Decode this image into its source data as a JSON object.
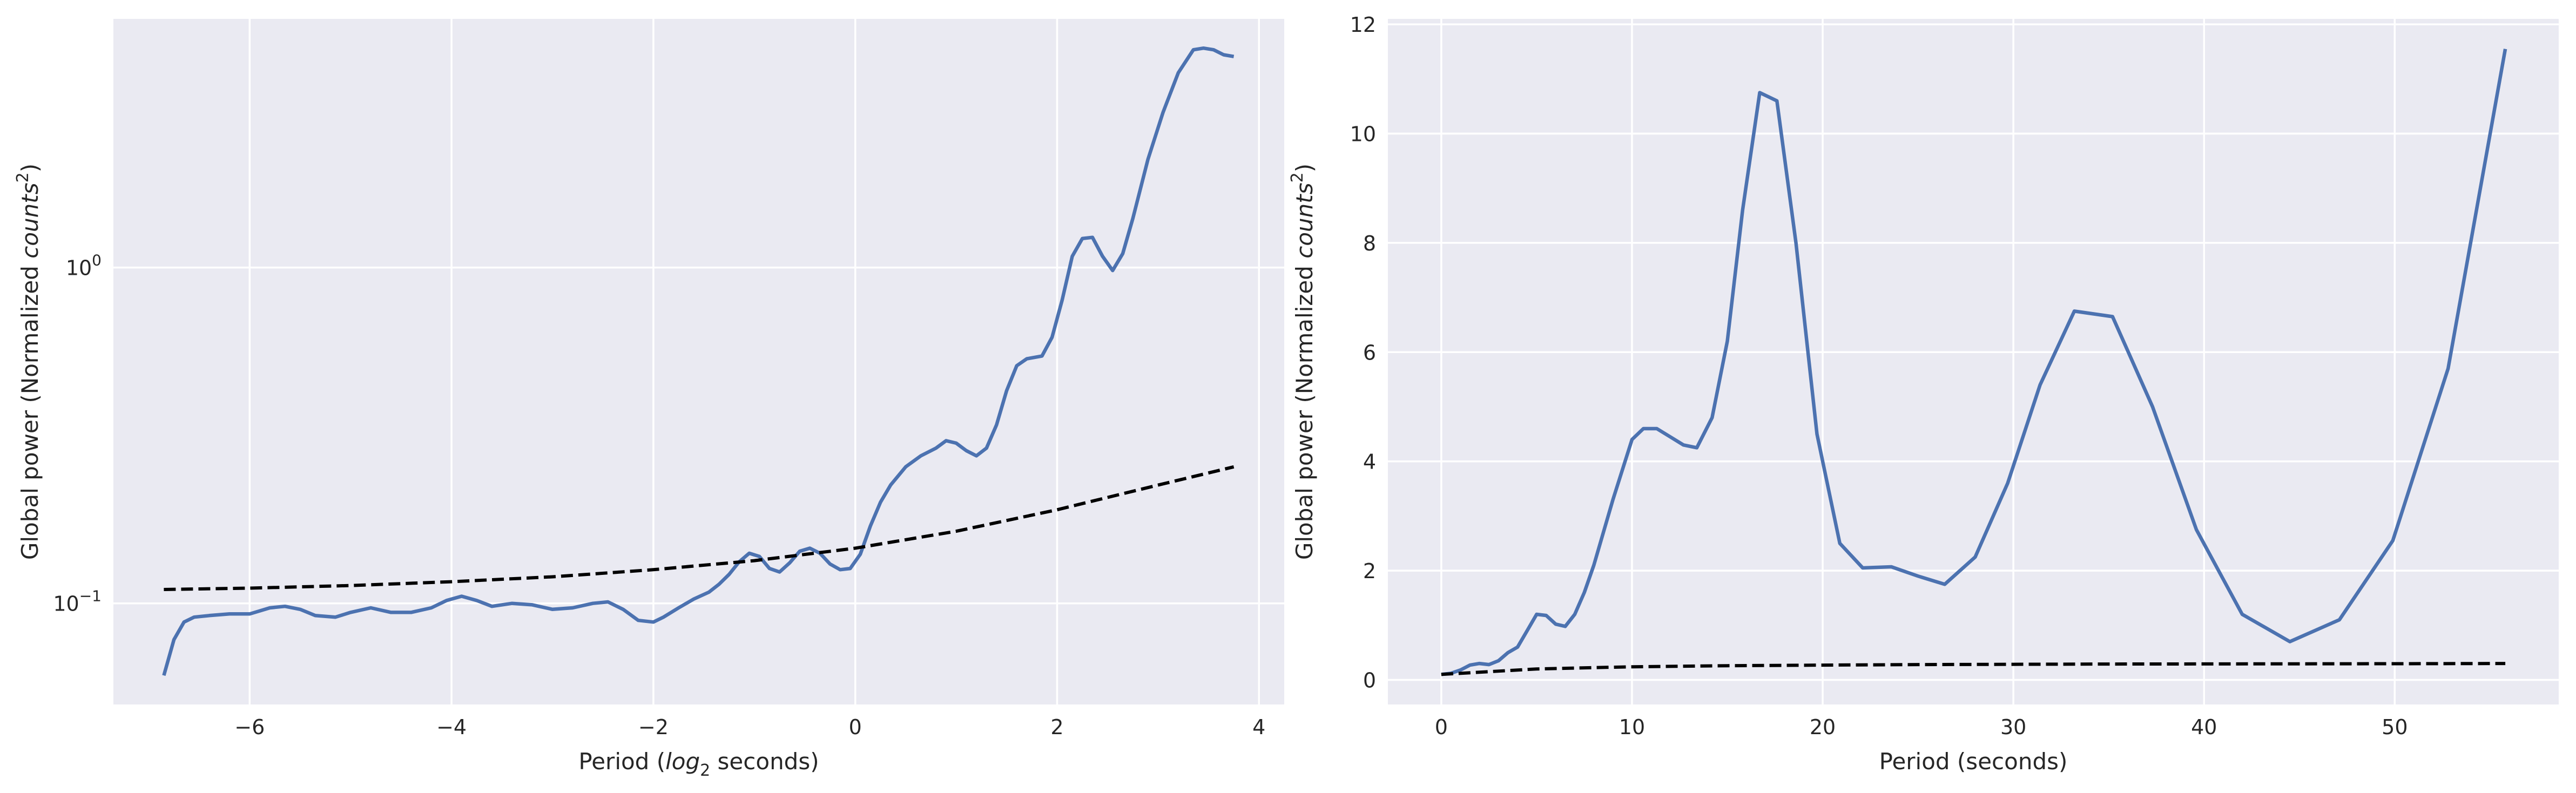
{
  "chart_data": [
    {
      "type": "line",
      "xlabel_prefix": "Period (",
      "xlabel_math": "log",
      "xlabel_sub": "2",
      "xlabel_suffix": " seconds)",
      "ylabel_prefix": "Global power (Normalized ",
      "ylabel_math": "counts",
      "ylabel_sup": "2",
      "ylabel_suffix": ")",
      "yscale": "log",
      "xlim": [
        -7.35,
        4.25
      ],
      "ylim": [
        0.05,
        5.5
      ],
      "grid": true,
      "xticks": [
        -6,
        -4,
        -2,
        0,
        2,
        4
      ],
      "xtick_labels": [
        "−6",
        "−4",
        "−2",
        "0",
        "2",
        "4"
      ],
      "yticks": [
        {
          "value": 0.1,
          "base": "10",
          "exp": "−1"
        },
        {
          "value": 1.0,
          "base": "10",
          "exp": "0"
        }
      ],
      "series": [
        {
          "style": "solid",
          "color": "#4c72b0",
          "x": [
            -6.85,
            -6.75,
            -6.65,
            -6.55,
            -6.4,
            -6.2,
            -6.0,
            -5.8,
            -5.65,
            -5.5,
            -5.35,
            -5.15,
            -5.0,
            -4.8,
            -4.6,
            -4.4,
            -4.2,
            -4.05,
            -3.9,
            -3.75,
            -3.6,
            -3.4,
            -3.2,
            -3.0,
            -2.8,
            -2.6,
            -2.45,
            -2.3,
            -2.15,
            -2.0,
            -1.9,
            -1.75,
            -1.6,
            -1.45,
            -1.35,
            -1.25,
            -1.15,
            -1.05,
            -0.95,
            -0.85,
            -0.75,
            -0.65,
            -0.55,
            -0.45,
            -0.35,
            -0.25,
            -0.15,
            -0.05,
            0.05,
            0.15,
            0.25,
            0.35,
            0.5,
            0.65,
            0.8,
            0.9,
            1.0,
            1.1,
            1.2,
            1.3,
            1.4,
            1.5,
            1.6,
            1.7,
            1.85,
            1.95,
            2.05,
            2.15,
            2.25,
            2.35,
            2.45,
            2.55,
            2.65,
            2.75,
            2.9,
            3.05,
            3.2,
            3.35,
            3.45,
            3.55,
            3.65,
            3.75
          ],
          "y": [
            0.061,
            0.078,
            0.088,
            0.091,
            0.092,
            0.093,
            0.093,
            0.097,
            0.098,
            0.096,
            0.092,
            0.091,
            0.094,
            0.097,
            0.094,
            0.094,
            0.097,
            0.102,
            0.105,
            0.102,
            0.098,
            0.1,
            0.099,
            0.096,
            0.097,
            0.1,
            0.101,
            0.096,
            0.089,
            0.088,
            0.091,
            0.097,
            0.103,
            0.108,
            0.114,
            0.122,
            0.133,
            0.141,
            0.138,
            0.127,
            0.124,
            0.132,
            0.143,
            0.146,
            0.141,
            0.131,
            0.126,
            0.127,
            0.14,
            0.17,
            0.2,
            0.225,
            0.255,
            0.275,
            0.29,
            0.305,
            0.3,
            0.285,
            0.275,
            0.29,
            0.34,
            0.43,
            0.51,
            0.535,
            0.545,
            0.62,
            0.8,
            1.08,
            1.22,
            1.23,
            1.08,
            0.98,
            1.1,
            1.4,
            2.1,
            2.9,
            3.8,
            4.45,
            4.5,
            4.45,
            4.3,
            4.25
          ]
        },
        {
          "style": "dashed",
          "color": "#000000",
          "x": [
            -6.85,
            -6.0,
            -5.0,
            -4.0,
            -3.0,
            -2.0,
            -1.0,
            0.0,
            1.0,
            2.0,
            3.0,
            3.75
          ],
          "y": [
            0.11,
            0.111,
            0.113,
            0.116,
            0.12,
            0.126,
            0.134,
            0.146,
            0.164,
            0.19,
            0.225,
            0.255
          ]
        }
      ]
    },
    {
      "type": "line",
      "xlabel": "Period (seconds)",
      "ylabel_prefix": "Global power (Normalized ",
      "ylabel_math": "counts",
      "ylabel_sup": "2",
      "ylabel_suffix": ")",
      "yscale": "linear",
      "xlim": [
        -2.8,
        58.6
      ],
      "ylim": [
        -0.45,
        12.1
      ],
      "grid": true,
      "xticks": [
        0,
        10,
        20,
        30,
        40,
        50
      ],
      "xtick_labels": [
        "0",
        "10",
        "20",
        "30",
        "40",
        "50"
      ],
      "yticks": [
        0,
        2,
        4,
        6,
        8,
        10,
        12
      ],
      "ytick_labels": [
        "0",
        "2",
        "4",
        "6",
        "8",
        "10",
        "12"
      ],
      "series": [
        {
          "style": "solid",
          "color": "#4c72b0",
          "x": [
            0,
            0.5,
            1.0,
            1.5,
            2.0,
            2.5,
            3.0,
            3.5,
            4.0,
            4.5,
            5.0,
            5.5,
            6.0,
            6.5,
            7.0,
            7.5,
            8.0,
            9.0,
            10.0,
            10.6,
            11.3,
            12.0,
            12.7,
            13.4,
            14.2,
            15.0,
            15.8,
            16.7,
            17.6,
            18.6,
            19.7,
            20.9,
            22.1,
            23.6,
            25.0,
            26.4,
            28.0,
            29.7,
            31.4,
            33.2,
            35.2,
            37.3,
            39.6,
            42.0,
            44.5,
            47.1,
            49.9,
            52.8,
            55.8
          ],
          "y": [
            0.1,
            0.12,
            0.18,
            0.27,
            0.3,
            0.28,
            0.35,
            0.5,
            0.6,
            0.9,
            1.2,
            1.18,
            1.02,
            0.98,
            1.2,
            1.6,
            2.1,
            3.3,
            4.4,
            4.6,
            4.6,
            4.45,
            4.3,
            4.25,
            4.8,
            6.2,
            8.6,
            10.75,
            10.6,
            8.0,
            4.5,
            2.5,
            2.05,
            2.07,
            1.9,
            1.75,
            2.25,
            3.6,
            5.4,
            6.75,
            6.65,
            5.0,
            2.75,
            1.2,
            0.7,
            1.1,
            2.55,
            5.7,
            11.55
          ]
        },
        {
          "style": "dashed",
          "color": "#000000",
          "x": [
            0,
            5,
            10,
            15,
            20,
            25,
            30,
            35,
            40,
            45,
            50,
            55.8
          ],
          "y": [
            0.1,
            0.2,
            0.24,
            0.26,
            0.27,
            0.28,
            0.285,
            0.29,
            0.292,
            0.294,
            0.296,
            0.3
          ]
        }
      ]
    }
  ]
}
